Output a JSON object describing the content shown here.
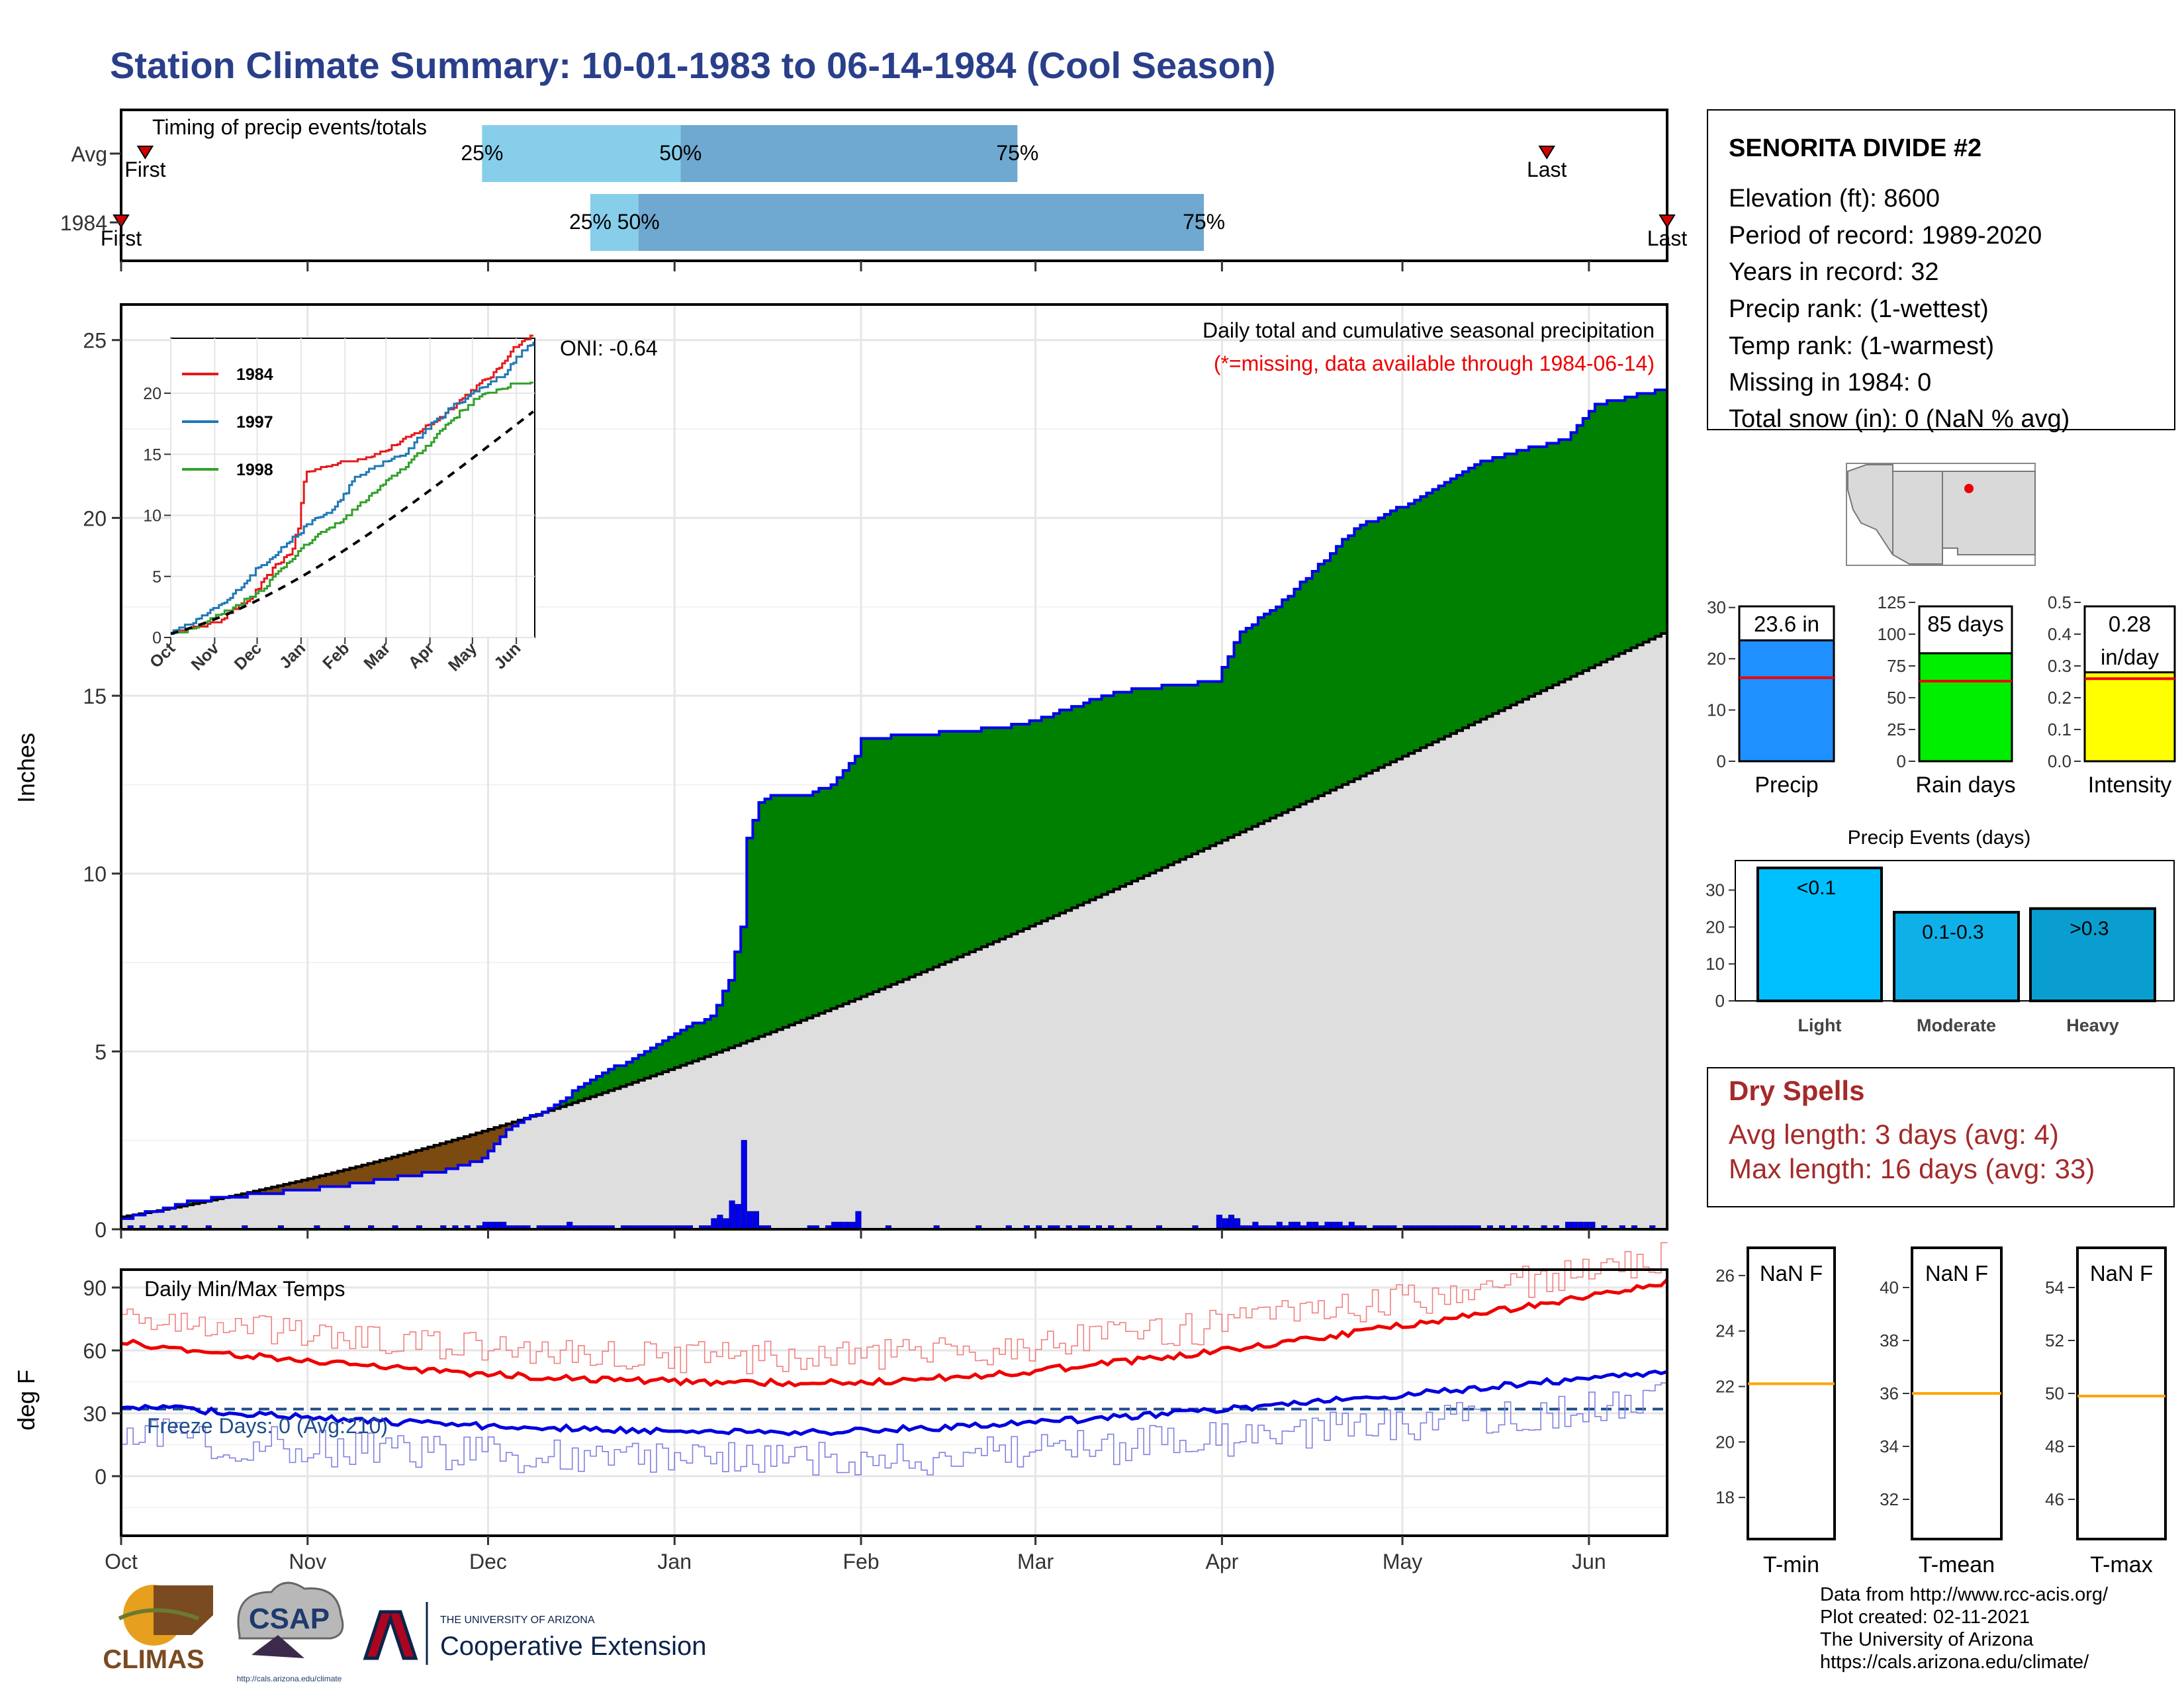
{
  "title": "Station Climate Summary: 10-01-1983 to 06-14-1984 (Cool Season)",
  "timing_panel": {
    "label": "Timing of precip events/totals",
    "rows": [
      {
        "name": "Avg",
        "first_date": "1983-10-05",
        "last_date": "1984-05-25",
        "p25": "1983-11-30",
        "p50": "1984-01-02",
        "p75": "1984-02-27",
        "first_label": "First",
        "last_label": "Last",
        "p25_label": "25%",
        "p50_label": "50%",
        "p75_label": "75%"
      },
      {
        "name": "1984",
        "first_date": "1983-10-01",
        "last_date": "1984-06-14",
        "p25": "1983-12-18",
        "p50": "1983-12-26",
        "p75": "1984-03-29",
        "first_label": "First",
        "last_label": "Last",
        "p25_label": "25%",
        "p50_label": "50%",
        "p75_label": "75%"
      }
    ]
  },
  "main_chart": {
    "ylabel": "Inches",
    "oni": "ONI: -0.64",
    "note1": "Daily total and cumulative seasonal precipitation",
    "note2": "(*=missing, data available through 1984-06-14)",
    "ylim": [
      0,
      26
    ],
    "yticks": [
      "0",
      "5",
      "10",
      "15",
      "20",
      "25"
    ],
    "xticks": [
      "Oct",
      "Nov",
      "Dec",
      "Jan",
      "Feb",
      "Mar",
      "Apr",
      "May",
      "Jun"
    ],
    "colors": {
      "above_avg": "#008000",
      "below_avg": "#7a4a10",
      "avg_fill": "#dedede",
      "cum_line": "#0000ee",
      "daily_bar": "#0000ee"
    }
  },
  "inset_chart": {
    "legend": [
      "1984",
      "1997",
      "1998"
    ],
    "legend_colors": [
      "#e31a1c",
      "#1f78b4",
      "#33a02c"
    ],
    "yticks": [
      "0",
      "5",
      "10",
      "15",
      "20"
    ],
    "xticks": [
      "Oct",
      "Nov",
      "Dec",
      "Jan",
      "Feb",
      "Mar",
      "Apr",
      "May",
      "Jun"
    ]
  },
  "temp_chart": {
    "ylabel": "deg F",
    "label": "Daily Min/Max Temps",
    "freeze": "Freeze Days: 0 (Avg:210)",
    "yticks": [
      "0",
      "30",
      "60",
      "90"
    ],
    "xticks": [
      "Oct",
      "Nov",
      "Dec",
      "Jan",
      "Feb",
      "Mar",
      "Apr",
      "May",
      "Jun"
    ]
  },
  "station_box": {
    "name": "SENORITA DIVIDE #2",
    "lines": [
      "Elevation (ft): 8600",
      "Period of record: 1989-2020",
      "Years in record: 32",
      "Precip rank:  (1-wettest)",
      "Temp rank:  (1-warmest)",
      "Missing in 1984: 0",
      "Total snow (in): 0 (NaN % avg)"
    ]
  },
  "summary_bars": [
    {
      "label": "Precip",
      "value": 23.6,
      "value_text": "23.6 in",
      "avg": 16.3,
      "ymax": 31,
      "yticks": [
        "0",
        "10",
        "20",
        "30"
      ],
      "color": "#1e90ff"
    },
    {
      "label": "Rain days",
      "value": 85,
      "value_text": "85 days",
      "avg": 63,
      "ymax": 125,
      "yticks": [
        "0",
        "25",
        "50",
        "75",
        "100",
        "125"
      ],
      "color": "#00ee00"
    },
    {
      "label": "Intensity",
      "value": 0.28,
      "value_text": "0.28\nin/day",
      "avg": 0.26,
      "ymax": 0.5,
      "yticks": [
        "0.0",
        "0.1",
        "0.2",
        "0.3",
        "0.4",
        "0.5"
      ],
      "color": "#ffff00"
    }
  ],
  "precip_events": {
    "title": "Precip Events (days)",
    "yticks": [
      "0",
      "10",
      "20",
      "30"
    ],
    "bars": [
      {
        "label": "Light",
        "range": "<0.1",
        "value": 36,
        "color": "#00bfff"
      },
      {
        "label": "Moderate",
        "range": "0.1-0.3",
        "value": 24,
        "color": "#0fb0e8"
      },
      {
        "label": "Heavy",
        "range": ">0.3",
        "value": 25,
        "color": "#0a9ed0"
      }
    ]
  },
  "dry_spells": {
    "title": "Dry Spells",
    "avg_length": "Avg length: 3 days (avg: 4)",
    "max_length": "Max length: 16 days (avg: 33)"
  },
  "temp_summary": [
    {
      "label": "T-min",
      "value_text": "NaN F",
      "avg": 22.1,
      "ylim": [
        16.5,
        27
      ],
      "yticks": [
        "18",
        "20",
        "22",
        "24",
        "26"
      ]
    },
    {
      "label": "T-mean",
      "value_text": "NaN F",
      "avg": 36,
      "ylim": [
        30.5,
        41.5
      ],
      "yticks": [
        "32",
        "34",
        "36",
        "38",
        "40"
      ]
    },
    {
      "label": "T-max",
      "value_text": "NaN F",
      "avg": 49.9,
      "ylim": [
        44.5,
        55.5
      ],
      "yticks": [
        "46",
        "48",
        "50",
        "52",
        "54"
      ]
    }
  ],
  "logos": {
    "climas": "CLIMAS",
    "csap": "CSAP",
    "csap_url": "http://cals.arizona.edu/climate",
    "ua_small": "THE UNIVERSITY OF ARIZONA",
    "ua_big": "Cooperative Extension"
  },
  "credits": [
    "Data from http://www.rcc-acis.org/",
    "Plot created: 02-11-2021",
    "The University of Arizona",
    "https://cals.arizona.edu/climate/"
  ]
}
